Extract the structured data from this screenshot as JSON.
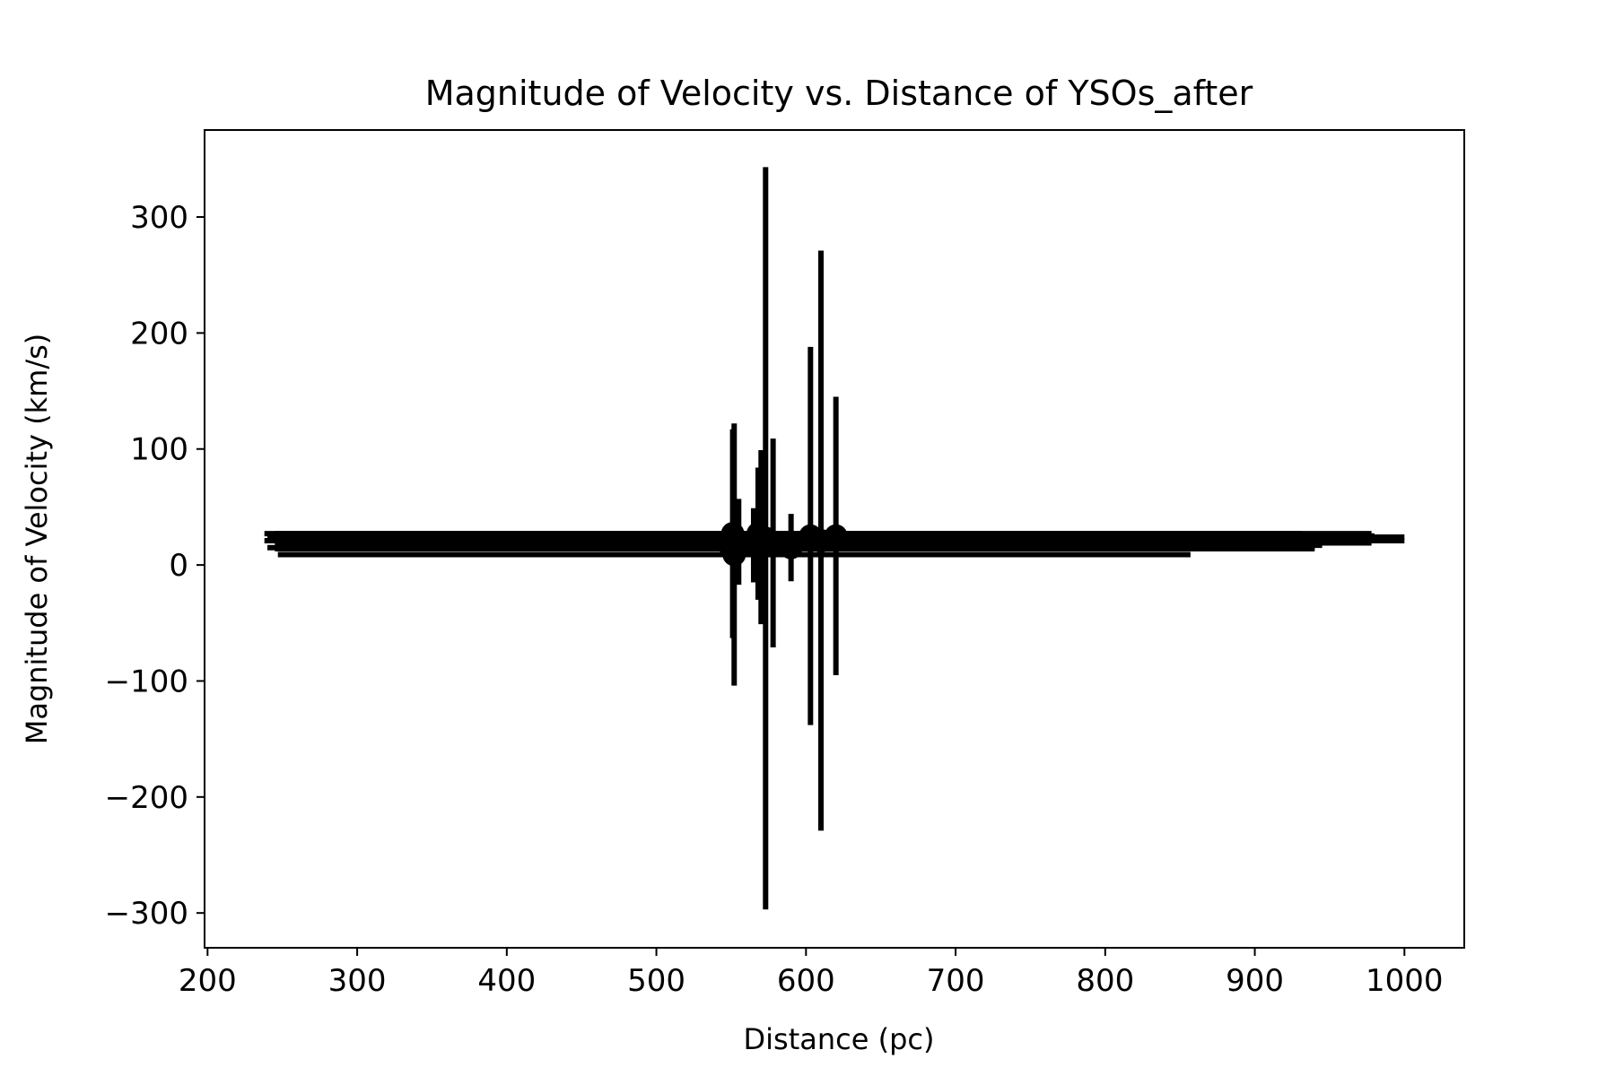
{
  "chart_data": {
    "type": "scatter",
    "title": "Magnitude of Velocity vs. Distance of YSOs_after",
    "xlabel": "Distance (pc)",
    "ylabel": "Magnitude of Velocity (km/s)",
    "xlim": [
      198,
      1040
    ],
    "ylim": [
      -330,
      375
    ],
    "x_ticks": [
      200,
      300,
      400,
      500,
      600,
      700,
      800,
      900,
      1000
    ],
    "x_tick_labels": [
      "200",
      "300",
      "400",
      "500",
      "600",
      "700",
      "800",
      "900",
      "1000"
    ],
    "y_ticks": [
      -300,
      -200,
      -100,
      0,
      100,
      200,
      300
    ],
    "y_tick_labels": [
      "−300",
      "−200",
      "−100",
      "0",
      "100",
      "200",
      "300"
    ],
    "grid": false,
    "legend": "none",
    "color": "#000000",
    "points": [
      {
        "x": 549,
        "y": 21,
        "xerr_low": 311,
        "xerr_high": 400,
        "yerr": 5
      },
      {
        "x": 550,
        "y": 14,
        "xerr_low": 305,
        "xerr_high": 390,
        "yerr": 5
      },
      {
        "x": 551,
        "y": 27,
        "xerr_low": 306,
        "xerr_high": 380,
        "yerr": 90
      },
      {
        "x": 552,
        "y": 9,
        "xerr_low": 305,
        "xerr_high": 305,
        "yerr": 113
      },
      {
        "x": 555,
        "y": 20,
        "xerr_low": 310,
        "xerr_high": 400,
        "yerr": 37
      },
      {
        "x": 565,
        "y": 17,
        "xerr_low": 320,
        "xerr_high": 380,
        "yerr": 32
      },
      {
        "x": 568,
        "y": 27,
        "xerr_low": 330,
        "xerr_high": 410,
        "yerr": 57
      },
      {
        "x": 570,
        "y": 24,
        "xerr_low": 330,
        "xerr_high": 430,
        "yerr": 75
      },
      {
        "x": 573,
        "y": 23,
        "xerr_low": 320,
        "xerr_high": 410,
        "yerr": 320
      },
      {
        "x": 578,
        "y": 19,
        "xerr_low": 330,
        "xerr_high": 400,
        "yerr": 90
      },
      {
        "x": 590,
        "y": 15,
        "xerr_low": 350,
        "xerr_high": 350,
        "yerr": 29
      },
      {
        "x": 603,
        "y": 25,
        "xerr_low": 360,
        "xerr_high": 340,
        "yerr": 163
      },
      {
        "x": 610,
        "y": 21,
        "xerr_low": 360,
        "xerr_high": 390,
        "yerr": 250
      },
      {
        "x": 620,
        "y": 25,
        "xerr_low": 380,
        "xerr_high": 360,
        "yerr": 120
      }
    ]
  }
}
